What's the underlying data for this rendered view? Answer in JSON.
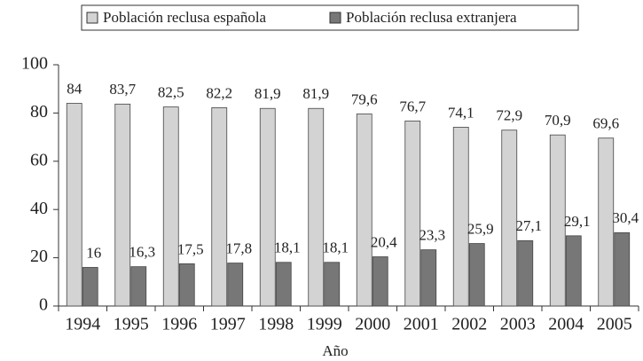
{
  "chart_data": {
    "type": "bar",
    "x_label": "Año",
    "categories": [
      "1994",
      "1995",
      "1996",
      "1997",
      "1998",
      "1999",
      "2000",
      "2001",
      "2002",
      "2003",
      "2004",
      "2005"
    ],
    "series": [
      {
        "name": "Población reclusa española",
        "color": "#d3d3d3",
        "values": [
          84,
          83.7,
          82.5,
          82.2,
          81.9,
          81.9,
          79.6,
          76.7,
          74.1,
          72.9,
          70.9,
          69.6
        ],
        "value_labels": [
          "84",
          "83,7",
          "82,5",
          "82,2",
          "81,9",
          "81,9",
          "79,6",
          "76,7",
          "74,1",
          "72,9",
          "70,9",
          "69,6"
        ]
      },
      {
        "name": "Población reclusa extranjera",
        "color": "#777777",
        "values": [
          16,
          16.3,
          17.5,
          17.8,
          18.1,
          18.1,
          20.4,
          23.3,
          25.9,
          27.1,
          29.1,
          30.4
        ],
        "value_labels": [
          "16",
          "16,3",
          "17,5",
          "17,8",
          "18,1",
          "18,1",
          "20,4",
          "23,3",
          "25,9",
          "27,1",
          "29,1",
          "30,4"
        ]
      }
    ],
    "ylim": [
      0,
      100
    ],
    "yticks": [
      0,
      20,
      40,
      60,
      80,
      100
    ],
    "legend": "top"
  }
}
